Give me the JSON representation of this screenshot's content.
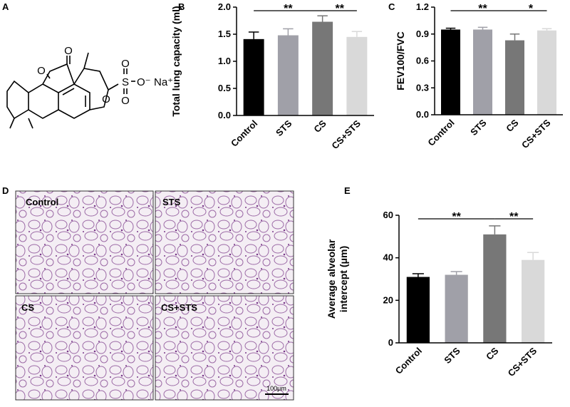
{
  "panel_labels": [
    "A",
    "B",
    "C",
    "D",
    "E"
  ],
  "structure": {
    "atoms": [
      "O",
      "O",
      "O",
      "S",
      "O",
      "O",
      "O⁻",
      "Na⁺"
    ]
  },
  "micrographs": {
    "labels": [
      "Control",
      "STS",
      "CS",
      "CS+STS"
    ],
    "scale_bar": "100μm"
  },
  "chart_data": [
    {
      "type": "bar",
      "ylabel": "Total lung capacity (ml)",
      "categories": [
        "Control",
        "STS",
        "CS",
        "CS+STS"
      ],
      "values": [
        1.41,
        1.48,
        1.73,
        1.45
      ],
      "errors": [
        0.13,
        0.12,
        0.11,
        0.1
      ],
      "colors": [
        "#000000",
        "#a0a0a8",
        "#777777",
        "#d9d9d9"
      ],
      "ylim": [
        0,
        2.0
      ],
      "yticks": [
        {
          "value": 0,
          "label": "0.0"
        },
        0.5,
        {
          "value": 1.0,
          "label": "1.0"
        },
        1.5,
        {
          "value": 2.0,
          "label": "2.0"
        }
      ],
      "annotations": [
        {
          "text": "**",
          "between": [
            "Control",
            "CS"
          ]
        },
        {
          "text": "**",
          "between": [
            "CS",
            "CS+STS"
          ]
        }
      ]
    },
    {
      "type": "bar",
      "ylabel": "FEV100/FVC",
      "categories": [
        "Control",
        "STS",
        "CS",
        "CS+STS"
      ],
      "values": [
        0.95,
        0.95,
        0.83,
        0.94
      ],
      "errors": [
        0.015,
        0.025,
        0.07,
        0.02
      ],
      "colors": [
        "#000000",
        "#a0a0a8",
        "#777777",
        "#d9d9d9"
      ],
      "ylim": [
        0,
        1.2
      ],
      "yticks": [
        {
          "value": 0,
          "label": "0.0"
        },
        0.3,
        0.6,
        0.9,
        1.2
      ],
      "annotations": [
        {
          "text": "**",
          "between": [
            "Control",
            "CS"
          ]
        },
        {
          "text": "*",
          "between": [
            "CS",
            "CS+STS"
          ]
        }
      ]
    },
    {
      "type": "bar",
      "ylabel": [
        "Average alveolar",
        "intercept (μm)"
      ],
      "categories": [
        "Control",
        "STS",
        "CS",
        "CS+STS"
      ],
      "values": [
        31,
        32,
        51,
        39
      ],
      "errors": [
        1.5,
        1.5,
        4,
        3.5
      ],
      "colors": [
        "#000000",
        "#a0a0a8",
        "#777777",
        "#d9d9d9"
      ],
      "ylim": [
        0,
        60
      ],
      "yticks": [
        0,
        20,
        40,
        60
      ],
      "annotations": [
        {
          "text": "**",
          "between": [
            "Control",
            "CS"
          ]
        },
        {
          "text": "**",
          "between": [
            "CS",
            "CS+STS"
          ]
        }
      ]
    }
  ]
}
